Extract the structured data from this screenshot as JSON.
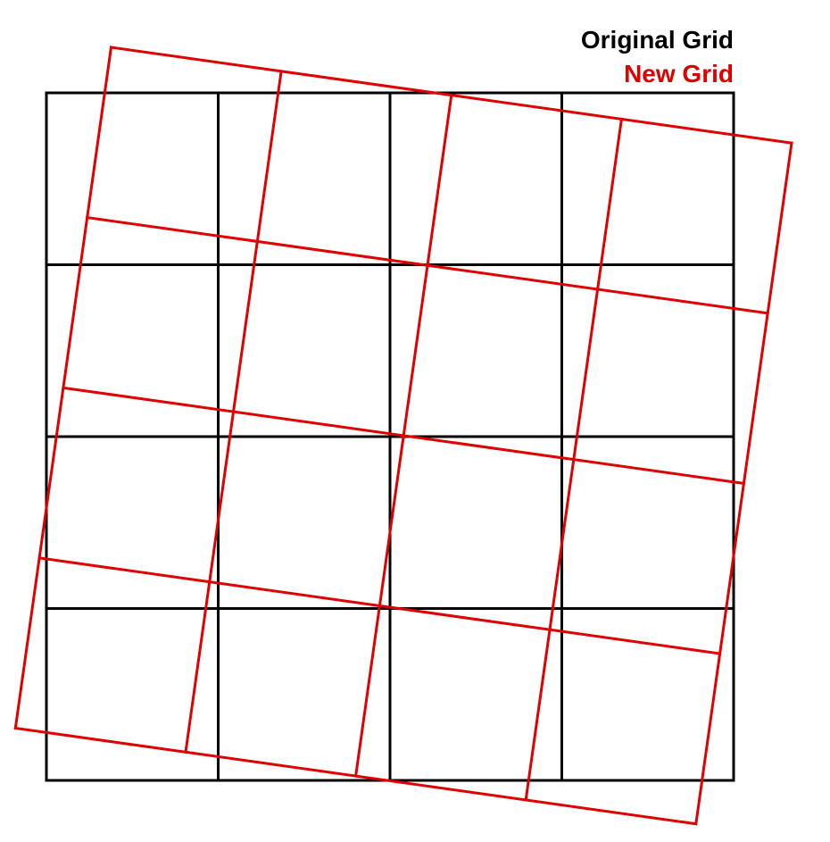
{
  "legend": {
    "original_label": "Original Grid",
    "new_label": "New Grid"
  },
  "colors": {
    "original": "#000000",
    "new": "#e00000",
    "background": "#ffffff"
  },
  "grids": {
    "original": {
      "rows": 4,
      "cols": 4
    },
    "new": {
      "rows": 4,
      "cols": 4,
      "rotation_deg": 8
    }
  }
}
